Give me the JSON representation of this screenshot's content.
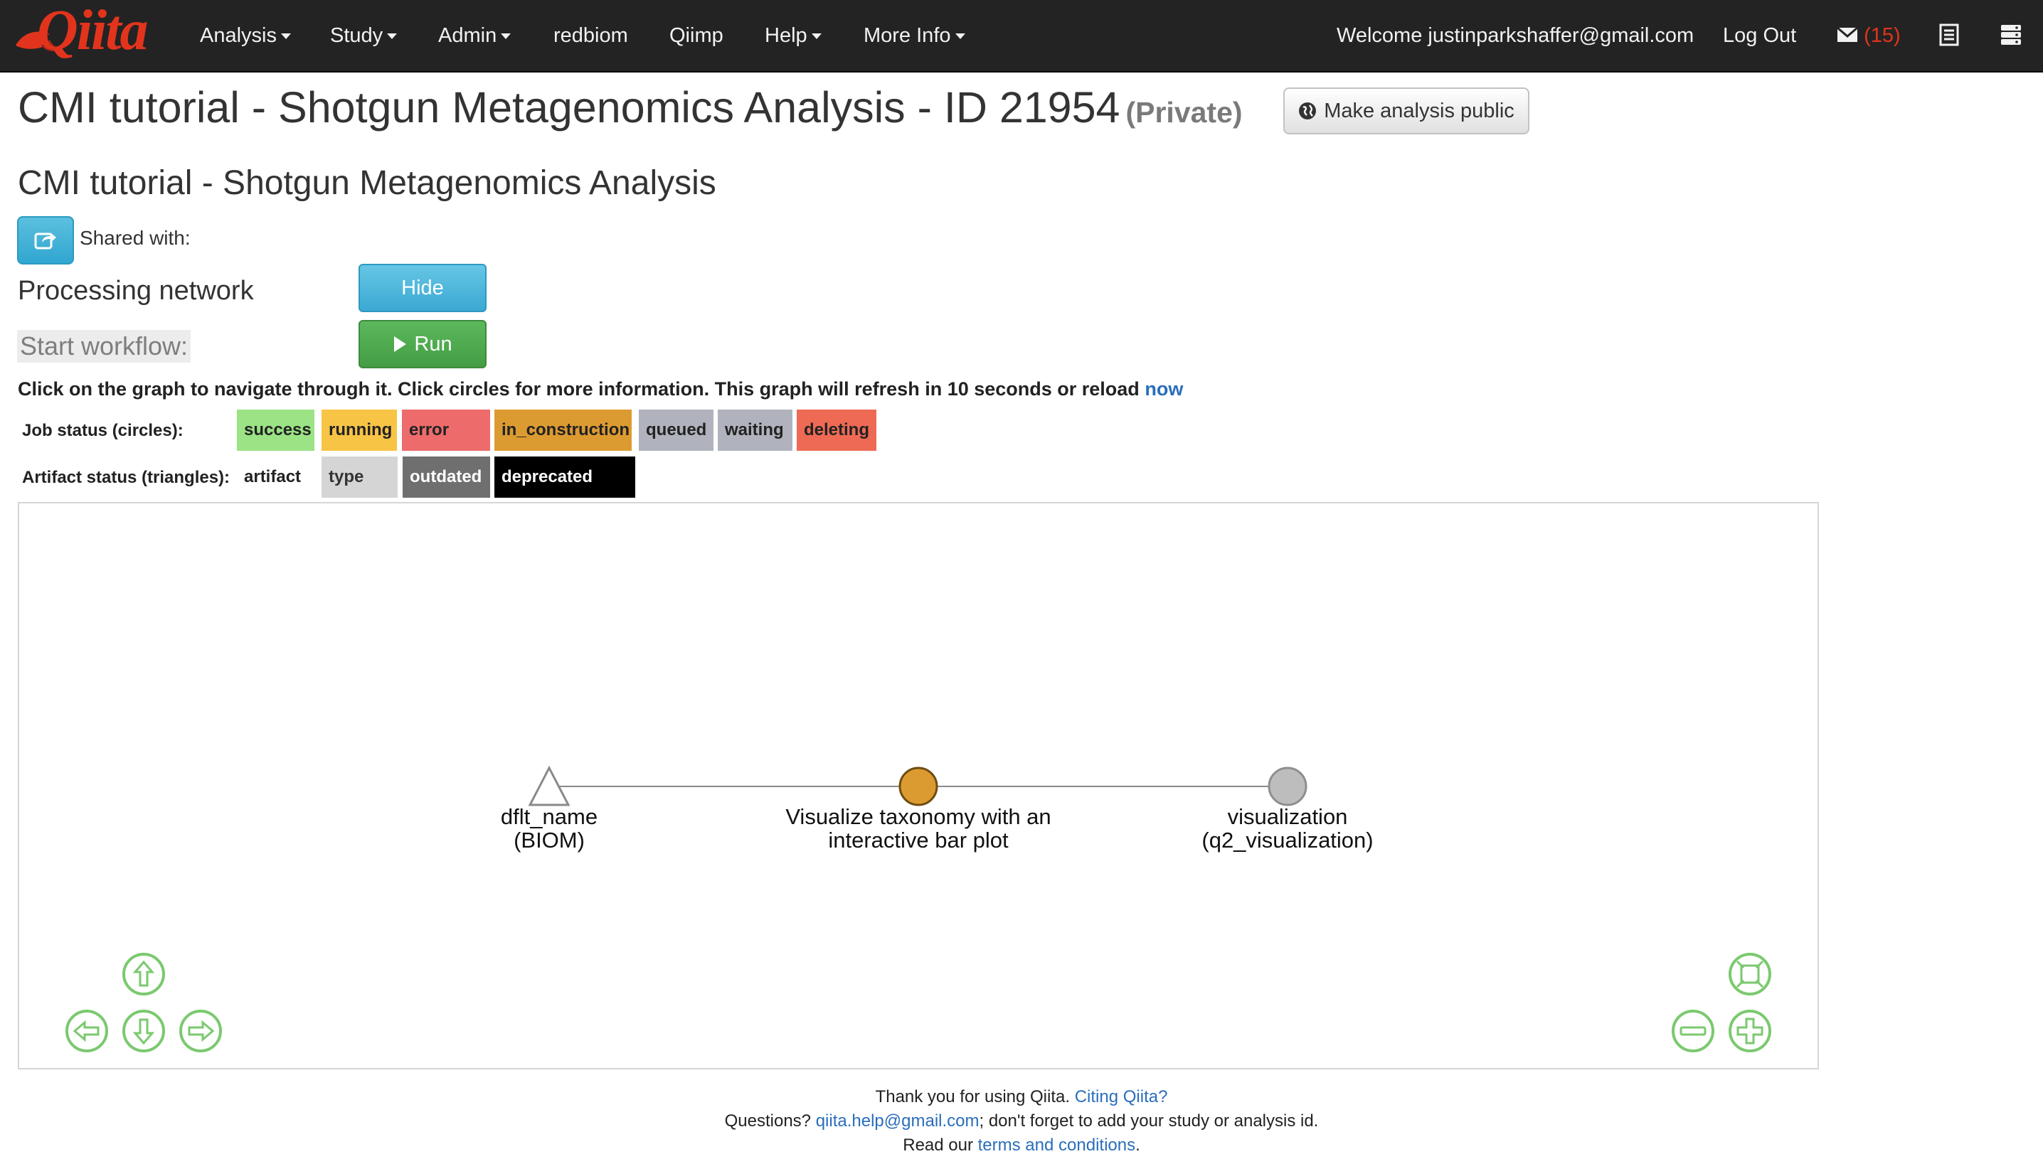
{
  "navbar": {
    "logo_text": "Qiita",
    "menu": [
      {
        "label": "Analysis",
        "dropdown": true
      },
      {
        "label": "Study",
        "dropdown": true
      },
      {
        "label": "Admin",
        "dropdown": true
      },
      {
        "label": "redbiom",
        "dropdown": false
      },
      {
        "label": "Qiimp",
        "dropdown": false
      },
      {
        "label": "Help",
        "dropdown": true
      },
      {
        "label": "More Info",
        "dropdown": true
      }
    ],
    "welcome": "Welcome justinparkshaffer@gmail.com",
    "logout": "Log Out",
    "messages_count": "(15)",
    "icons": [
      "envelope-icon",
      "list-icon",
      "server-icon"
    ]
  },
  "analysis": {
    "title": "CMI tutorial - Shotgun Metagenomics Analysis - ID 21954",
    "privacy": "(Private)",
    "make_public_label": "Make analysis public",
    "name": "CMI tutorial - Shotgun Metagenomics Analysis",
    "shared_with_label": "Shared with:"
  },
  "processing": {
    "title": "Processing network",
    "hide_label": "Hide",
    "start_workflow_label": "Start workflow:",
    "run_label": "Run",
    "instructions": "Click on the graph to navigate through it. Click circles for more information. This graph will refresh in 10 seconds or reload",
    "reload_link": "now"
  },
  "legend": {
    "job_status_label": "Job status (circles):",
    "job_statuses": [
      {
        "label": "success",
        "color": "#9be384"
      },
      {
        "label": "running",
        "color": "#f8c445"
      },
      {
        "label": "error",
        "color": "#ed6b6b"
      },
      {
        "label": "in_construction",
        "color": "#dc9b31"
      },
      {
        "label": "queued",
        "color": "#b0b3bd"
      },
      {
        "label": "waiting",
        "color": "#b0b3bd"
      },
      {
        "label": "deleting",
        "color": "#ef6a54"
      }
    ],
    "artifact_status_label": "Artifact status (triangles):",
    "artifact_statuses": [
      {
        "label": "artifact",
        "color": "#ffffff",
        "text_color": "#222222"
      },
      {
        "label": "type",
        "color": "#d5d5d5",
        "text_color": "#333333"
      },
      {
        "label": "outdated",
        "color": "#6f6f6f",
        "text_color": "#ffffff"
      },
      {
        "label": "deprecated",
        "color": "#000000",
        "text_color": "#ffffff"
      }
    ]
  },
  "graph": {
    "nodes": [
      {
        "id": "artifact",
        "shape": "triangle",
        "label_lines": [
          "dflt_name",
          "(BIOM)"
        ],
        "color": "#ffffff"
      },
      {
        "id": "job",
        "shape": "circle",
        "label_lines": [
          "Visualize taxonomy with an",
          "interactive bar plot"
        ],
        "color": "#dc9b31"
      },
      {
        "id": "output",
        "shape": "circle",
        "label_lines": [
          "visualization",
          "(q2_visualization)"
        ],
        "color": "#bdbdbd"
      }
    ],
    "control_color": "#7bc96f"
  },
  "footer": {
    "thanks": "Thank you for using Qiita.",
    "citing_link": "Citing Qiita?",
    "questions": "Questions?",
    "email_link": "qiita.help@gmail.com",
    "questions_rest": "; don't forget to add your study or analysis id.",
    "read_our": "Read our",
    "terms_link": "terms and conditions",
    "period": "."
  }
}
